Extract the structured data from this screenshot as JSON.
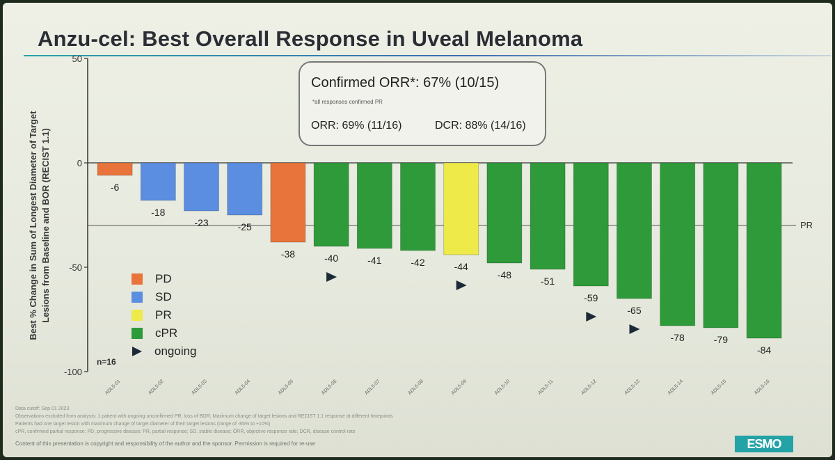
{
  "title": "Anzu-cel: Best Overall Response in Uveal Melanoma",
  "y_axis_label_line1": "Best % Change in Sum of Longest Diameter of Target",
  "y_axis_label_line2": "Lesions from Baseline and BOR (RECIST 1.1)",
  "callout": {
    "main": "Confirmed ORR*: 67% (10/15)",
    "note": "*all responses confirmed PR",
    "orr": "ORR: 69% (11/16)",
    "dcr": "DCR: 88% (14/16)"
  },
  "n_label": "n=16",
  "pr_line_label": "PR",
  "legend": [
    {
      "label": "PD",
      "color": "#e8743b"
    },
    {
      "label": "SD",
      "color": "#5b8ee0"
    },
    {
      "label": "PR",
      "color": "#eeea4a"
    },
    {
      "label": "cPR",
      "color": "#2e9a3a"
    },
    {
      "label": "ongoing",
      "icon": "right-triangle-icon"
    }
  ],
  "footnotes": [
    "Data cutoff: Sep 01 2023",
    "Observations excluded from analysis: 1 patient with ongoing unconfirmed PR, loss of BOR; Maximum change of target lesions and RECIST 1.1 response at different timepoints",
    "Patients had one target lesion with maximum change of target diameter of their target lesions (range of -85% to +10%)",
    "cPR, confirmed partial response; PD, progressive disease; PR, partial response; SD, stable disease; ORR, objective response rate; DCR, disease control rate"
  ],
  "copyright": "Content of this presentation is copyright and responsibility of the author and the sponsor. Permission is required for re-use",
  "logo_text": "ESMO",
  "chart_data": {
    "type": "bar",
    "title": "Anzu-cel: Best Overall Response in Uveal Melanoma",
    "ylabel": "Best % Change in Sum of Longest Diameter of Target Lesions from Baseline and BOR (RECIST 1.1)",
    "xlabel": "",
    "ylim": [
      -100,
      50
    ],
    "yticks": [
      50,
      0,
      -50,
      -100
    ],
    "reference_line": {
      "value": -30,
      "label": "PR"
    },
    "grid": false,
    "legend_position": "bottom-left",
    "categories": [
      "ADL5-01",
      "ADL5-02",
      "ADL5-03",
      "ADL5-04",
      "ADL5-05",
      "ADL5-06",
      "ADL5-07",
      "ADL5-08",
      "ADL5-09",
      "ADL5-10",
      "ADL5-11",
      "ADL5-12",
      "ADL5-13",
      "ADL5-14",
      "ADL5-15",
      "ADL5-16"
    ],
    "values": [
      -6,
      -18,
      -23,
      -25,
      -38,
      -40,
      -41,
      -42,
      -44,
      -48,
      -51,
      -59,
      -65,
      -78,
      -79,
      -84
    ],
    "value_labels": [
      "-6",
      "-18",
      "-23",
      "-25",
      "-38",
      "-40",
      "-41",
      "-42",
      "-44",
      "-48",
      "-51",
      "-59",
      "-65",
      "-78",
      "-79",
      "-84"
    ],
    "response": [
      "PD",
      "SD",
      "SD",
      "SD",
      "PD",
      "cPR",
      "cPR",
      "cPR",
      "PR",
      "cPR",
      "cPR",
      "cPR",
      "cPR",
      "cPR",
      "cPR",
      "cPR"
    ],
    "ongoing": [
      false,
      false,
      false,
      false,
      false,
      true,
      false,
      false,
      true,
      false,
      false,
      true,
      true,
      false,
      false,
      false
    ],
    "colors": {
      "PD": "#e8743b",
      "SD": "#5b8ee0",
      "PR": "#eeea4a",
      "cPR": "#2e9a3a"
    }
  }
}
